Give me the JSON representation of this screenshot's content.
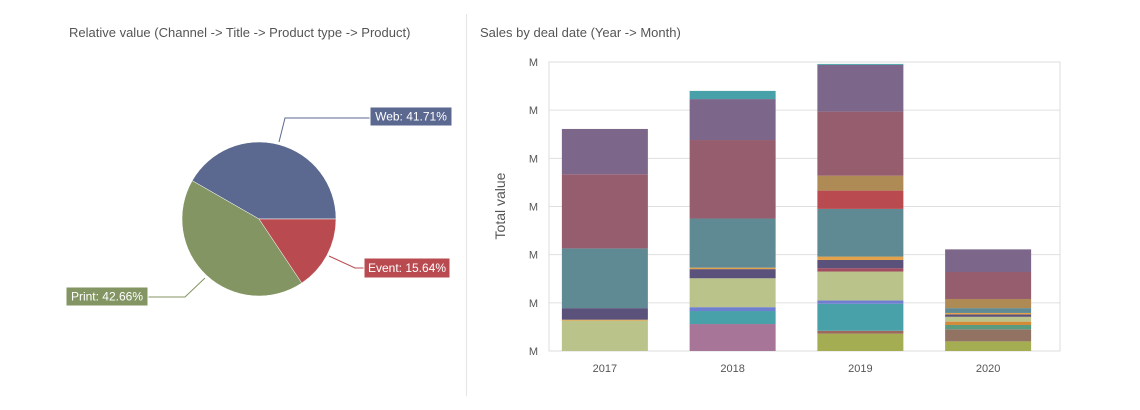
{
  "chart_data": [
    {
      "type": "pie",
      "title": "Relative value (Channel -> Title -> Product type -> Product)",
      "slices": [
        {
          "label": "Web",
          "value": 41.71,
          "display": "Web: 41.71%",
          "color": "#5b6890"
        },
        {
          "label": "Event",
          "value": 15.64,
          "display": "Event: 15.64%",
          "color": "#b94b50"
        },
        {
          "label": "Print",
          "value": 42.66,
          "display": "Print: 42.66%",
          "color": "#839563"
        }
      ]
    },
    {
      "type": "bar",
      "stacked": true,
      "title": "Sales by deal date (Year -> Month)",
      "xlabel": "",
      "ylabel": "Total value",
      "ylim": [
        0,
        6
      ],
      "yticks": [
        "M",
        "M",
        "M",
        "M",
        "M",
        "M",
        "M"
      ],
      "grid": true,
      "categories": [
        "2017",
        "2018",
        "2019",
        "2020"
      ],
      "stacks": [
        [
          [
            0.63,
            "#bac38a"
          ],
          [
            0.02,
            "#e3a24a"
          ],
          [
            0.24,
            "#5a527a"
          ],
          [
            1.24,
            "#5f8a93"
          ],
          [
            1.54,
            "#955d6d"
          ],
          [
            0.94,
            "#7c6689"
          ]
        ],
        [
          [
            0.56,
            "#a67598"
          ],
          [
            0.27,
            "#48a1a8"
          ],
          [
            0.08,
            "#6f7fd0"
          ],
          [
            0.6,
            "#bac38a"
          ],
          [
            0.19,
            "#5a527a"
          ],
          [
            0.03,
            "#e3a24a"
          ],
          [
            1.02,
            "#5f8a93"
          ],
          [
            1.63,
            "#955d6d"
          ],
          [
            0.85,
            "#7c6689"
          ],
          [
            0.17,
            "#48a1a8"
          ]
        ],
        [
          [
            0.36,
            "#a5ad52"
          ],
          [
            0.06,
            "#9b6a5a"
          ],
          [
            0.56,
            "#48a1a8"
          ],
          [
            0.07,
            "#6f7fd0"
          ],
          [
            0.6,
            "#bac38a"
          ],
          [
            0.07,
            "#a24e62"
          ],
          [
            0.17,
            "#5a527a"
          ],
          [
            0.07,
            "#e3a24a"
          ],
          [
            0.99,
            "#5f8a93"
          ],
          [
            0.38,
            "#b94b50"
          ],
          [
            0.31,
            "#ae8a55"
          ],
          [
            1.33,
            "#955d6d"
          ],
          [
            0.97,
            "#7c6689"
          ],
          [
            0.02,
            "#48a1a8"
          ]
        ],
        [
          [
            0.2,
            "#a5ad52"
          ],
          [
            0.25,
            "#927262"
          ],
          [
            0.09,
            "#5a9b80"
          ],
          [
            0.07,
            "#d38b3a"
          ],
          [
            0.1,
            "#bac38a"
          ],
          [
            0.05,
            "#5a527a"
          ],
          [
            0.03,
            "#e3a24a"
          ],
          [
            0.1,
            "#5f8a93"
          ],
          [
            0.19,
            "#ae8a55"
          ],
          [
            0.56,
            "#955d6d"
          ],
          [
            0.47,
            "#7c6689"
          ]
        ]
      ]
    }
  ]
}
